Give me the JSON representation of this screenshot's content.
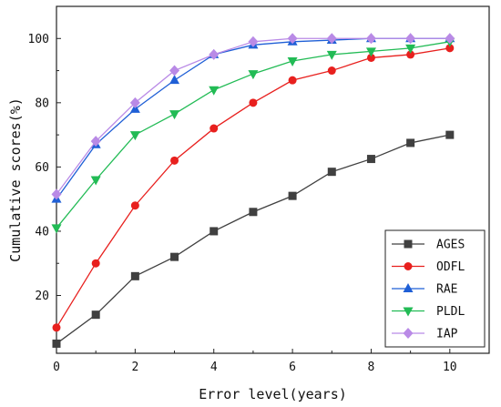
{
  "chart_data": {
    "type": "line",
    "title": "",
    "xlabel": "Error level(years)",
    "ylabel": "Cumulative scores(%)",
    "xlim": [
      0,
      11
    ],
    "ylim": [
      2,
      110
    ],
    "x_ticks": [
      0,
      2,
      4,
      6,
      8,
      10
    ],
    "y_ticks": [
      20,
      40,
      60,
      80,
      100
    ],
    "grid": false,
    "legend_position": "bottom-right",
    "x": [
      0,
      1,
      2,
      3,
      4,
      5,
      6,
      7,
      8,
      9,
      10
    ],
    "series": [
      {
        "name": "AGES",
        "color": "#404040",
        "marker": "square",
        "values": [
          5,
          14,
          26,
          32,
          40,
          46,
          51,
          58.5,
          62.5,
          67.5,
          70
        ]
      },
      {
        "name": "ODFL",
        "color": "#e8201e",
        "marker": "circle",
        "values": [
          10,
          30,
          48,
          62,
          72,
          80,
          87,
          90,
          94,
          95,
          97
        ]
      },
      {
        "name": "RAE",
        "color": "#1f5fd6",
        "marker": "triangle-up",
        "values": [
          50,
          67,
          78,
          87,
          95,
          98,
          99,
          99.5,
          100,
          100,
          100
        ]
      },
      {
        "name": "PLDL",
        "color": "#22bb55",
        "marker": "triangle-down",
        "values": [
          41,
          56,
          70,
          76.5,
          84,
          89,
          93,
          95,
          96,
          97,
          99
        ]
      },
      {
        "name": "IAP",
        "color": "#b98ae6",
        "marker": "diamond",
        "values": [
          51.5,
          68,
          80,
          90,
          95,
          99,
          100,
          100,
          100,
          100,
          100
        ]
      }
    ]
  }
}
